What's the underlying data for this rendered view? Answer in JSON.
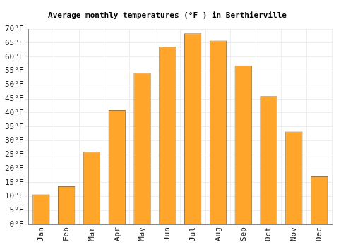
{
  "chart_data": {
    "type": "bar",
    "title": "Average monthly temperatures (°F ) in Berthierville",
    "categories": [
      "Jan",
      "Feb",
      "Mar",
      "Apr",
      "May",
      "Jun",
      "Jul",
      "Aug",
      "Sep",
      "Oct",
      "Nov",
      "Dec"
    ],
    "values": [
      10.8,
      13.7,
      26,
      41,
      54.3,
      63.7,
      68.5,
      65.9,
      57,
      46,
      33.3,
      17.2
    ],
    "color": "#ffa52a",
    "ylim": [
      0,
      70
    ],
    "yticks": [
      {
        "value": 0,
        "label": "0°F"
      },
      {
        "value": 5,
        "label": "5°F"
      },
      {
        "value": 10,
        "label": "10°F"
      },
      {
        "value": 15,
        "label": "15°F"
      },
      {
        "value": 20,
        "label": "20°F"
      },
      {
        "value": 25,
        "label": "25°F"
      },
      {
        "value": 30,
        "label": "30°F"
      },
      {
        "value": 35,
        "label": "35°F"
      },
      {
        "value": 40,
        "label": "40°F"
      },
      {
        "value": 45,
        "label": "45°F"
      },
      {
        "value": 50,
        "label": "50°F"
      },
      {
        "value": 55,
        "label": "55°F"
      },
      {
        "value": 60,
        "label": "60°F"
      },
      {
        "value": 65,
        "label": "65°F"
      },
      {
        "value": 70,
        "label": "70°F"
      }
    ],
    "grid": true
  }
}
